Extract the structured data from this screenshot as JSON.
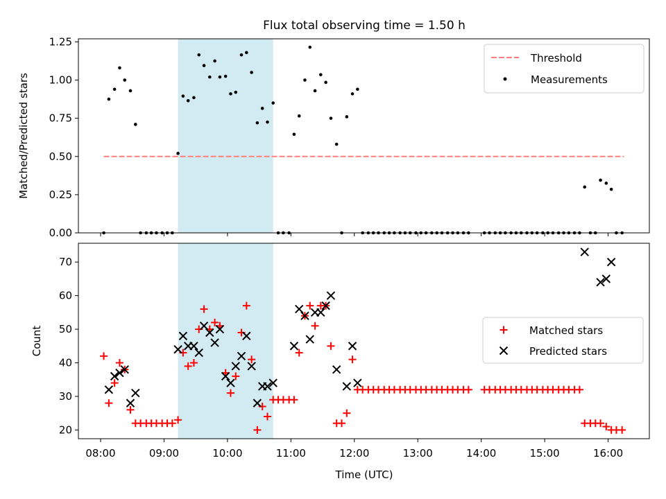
{
  "colors": {
    "threshold": "#ff7f7f",
    "measurement": "#000000",
    "matched": "#ff0000",
    "predicted": "#000000",
    "span": "#add8e6"
  },
  "chart_data": [
    {
      "type": "scatter",
      "panel": "top",
      "title": "Flux total observing time = 1.50 h",
      "xlabel": "",
      "ylabel": "Matched/Predicted stars",
      "xlim": [
        7.65,
        16.65
      ],
      "ylim": [
        0,
        1.27
      ],
      "yticks": [
        0.0,
        0.25,
        0.5,
        0.75,
        1.0,
        1.25
      ],
      "ytick_labels": [
        "0.00",
        "0.25",
        "0.50",
        "0.75",
        "1.00",
        "1.25"
      ],
      "shaded_span": [
        9.22,
        10.72
      ],
      "legend": {
        "position": "top-right",
        "entries": [
          "Threshold",
          "Measurements"
        ]
      },
      "series": [
        {
          "name": "Threshold",
          "style": "dashed-line",
          "points": [
            [
              8.05,
              0.5
            ],
            [
              16.25,
              0.5
            ]
          ]
        },
        {
          "name": "Measurements",
          "style": "dot",
          "points": [
            [
              8.05,
              0
            ],
            [
              8.13,
              0.875
            ],
            [
              8.22,
              0.94
            ],
            [
              8.3,
              1.08
            ],
            [
              8.38,
              1.0
            ],
            [
              8.47,
              0.93
            ],
            [
              8.55,
              0.71
            ],
            [
              8.63,
              0
            ],
            [
              8.72,
              0
            ],
            [
              8.8,
              0
            ],
            [
              8.88,
              0
            ],
            [
              8.97,
              0
            ],
            [
              9.05,
              0
            ],
            [
              9.13,
              0
            ],
            [
              9.22,
              0.52
            ],
            [
              9.3,
              0.895
            ],
            [
              9.38,
              0.865
            ],
            [
              9.47,
              0.885
            ],
            [
              9.55,
              1.165
            ],
            [
              9.63,
              1.095
            ],
            [
              9.72,
              1.02
            ],
            [
              9.8,
              1.125
            ],
            [
              9.88,
              1.02
            ],
            [
              9.97,
              1.025
            ],
            [
              10.05,
              0.91
            ],
            [
              10.13,
              0.92
            ],
            [
              10.22,
              1.165
            ],
            [
              10.3,
              1.18
            ],
            [
              10.38,
              1.05
            ],
            [
              10.47,
              0.72
            ],
            [
              10.55,
              0.815
            ],
            [
              10.63,
              0.725
            ],
            [
              10.72,
              0.85
            ],
            [
              10.8,
              0
            ],
            [
              10.88,
              0
            ],
            [
              10.97,
              0
            ],
            [
              11.05,
              0.645
            ],
            [
              11.13,
              0.765
            ],
            [
              11.22,
              1.0
            ],
            [
              11.3,
              1.215
            ],
            [
              11.38,
              0.93
            ],
            [
              11.47,
              1.035
            ],
            [
              11.55,
              0.985
            ],
            [
              11.63,
              0.75
            ],
            [
              11.72,
              0.58
            ],
            [
              11.8,
              0
            ],
            [
              11.88,
              0.76
            ],
            [
              11.97,
              0.91
            ],
            [
              12.05,
              0.94
            ],
            [
              12.13,
              0
            ],
            [
              12.22,
              0
            ],
            [
              12.3,
              0
            ],
            [
              12.38,
              0
            ],
            [
              12.47,
              0
            ],
            [
              12.55,
              0
            ],
            [
              12.63,
              0
            ],
            [
              12.72,
              0
            ],
            [
              12.8,
              0
            ],
            [
              12.88,
              0
            ],
            [
              12.97,
              0
            ],
            [
              13.05,
              0
            ],
            [
              13.13,
              0
            ],
            [
              13.22,
              0
            ],
            [
              13.3,
              0
            ],
            [
              13.38,
              0
            ],
            [
              13.47,
              0
            ],
            [
              13.55,
              0
            ],
            [
              13.63,
              0
            ],
            [
              13.72,
              0
            ],
            [
              13.8,
              0
            ],
            [
              14.05,
              0
            ],
            [
              14.13,
              0
            ],
            [
              14.22,
              0
            ],
            [
              14.3,
              0
            ],
            [
              14.38,
              0
            ],
            [
              14.47,
              0
            ],
            [
              14.55,
              0
            ],
            [
              14.63,
              0
            ],
            [
              14.72,
              0
            ],
            [
              14.8,
              0
            ],
            [
              14.88,
              0
            ],
            [
              14.97,
              0
            ],
            [
              15.05,
              0
            ],
            [
              15.13,
              0
            ],
            [
              15.22,
              0
            ],
            [
              15.3,
              0
            ],
            [
              15.38,
              0
            ],
            [
              15.47,
              0
            ],
            [
              15.55,
              0
            ],
            [
              15.63,
              0.3
            ],
            [
              15.72,
              0
            ],
            [
              15.8,
              0
            ],
            [
              15.88,
              0.345
            ],
            [
              15.97,
              0.325
            ],
            [
              16.05,
              0.285
            ],
            [
              16.13,
              0
            ],
            [
              16.22,
              0
            ]
          ]
        }
      ]
    },
    {
      "type": "scatter",
      "panel": "bottom",
      "title": "",
      "xlabel": "Time (UTC)",
      "ylabel": "Count",
      "xlim": [
        7.65,
        16.65
      ],
      "ylim": [
        17.4,
        75.6
      ],
      "xticks": [
        8,
        9,
        10,
        11,
        12,
        13,
        14,
        15,
        16
      ],
      "xtick_labels": [
        "08:00",
        "09:00",
        "10:00",
        "11:00",
        "12:00",
        "13:00",
        "14:00",
        "15:00",
        "16:00"
      ],
      "yticks": [
        20,
        30,
        40,
        50,
        60,
        70
      ],
      "ytick_labels": [
        "20",
        "30",
        "40",
        "50",
        "60",
        "70"
      ],
      "shaded_span": [
        9.22,
        10.72
      ],
      "legend": {
        "position": "center-right",
        "entries": [
          "Matched stars",
          "Predicted stars"
        ]
      },
      "series": [
        {
          "name": "Matched stars",
          "style": "plus",
          "points": [
            [
              8.05,
              42
            ],
            [
              8.13,
              28
            ],
            [
              8.22,
              34
            ],
            [
              8.3,
              40
            ],
            [
              8.38,
              38
            ],
            [
              8.47,
              26
            ],
            [
              8.55,
              22
            ],
            [
              8.63,
              22
            ],
            [
              8.72,
              22
            ],
            [
              8.8,
              22
            ],
            [
              8.88,
              22
            ],
            [
              8.97,
              22
            ],
            [
              9.05,
              22
            ],
            [
              9.13,
              22
            ],
            [
              9.22,
              23
            ],
            [
              9.3,
              43
            ],
            [
              9.38,
              39
            ],
            [
              9.47,
              40
            ],
            [
              9.55,
              50
            ],
            [
              9.63,
              56
            ],
            [
              9.72,
              50
            ],
            [
              9.8,
              52
            ],
            [
              9.88,
              51
            ],
            [
              9.97,
              37
            ],
            [
              10.05,
              31
            ],
            [
              10.13,
              36
            ],
            [
              10.22,
              49
            ],
            [
              10.3,
              57
            ],
            [
              10.38,
              41
            ],
            [
              10.47,
              20
            ],
            [
              10.55,
              27
            ],
            [
              10.63,
              24
            ],
            [
              10.72,
              29
            ],
            [
              10.8,
              29
            ],
            [
              10.88,
              29
            ],
            [
              10.97,
              29
            ],
            [
              11.05,
              29
            ],
            [
              11.13,
              43
            ],
            [
              11.22,
              54
            ],
            [
              11.3,
              57
            ],
            [
              11.38,
              51
            ],
            [
              11.47,
              57
            ],
            [
              11.55,
              57
            ],
            [
              11.63,
              45
            ],
            [
              11.72,
              22
            ],
            [
              11.8,
              22
            ],
            [
              11.88,
              25
            ],
            [
              11.97,
              41
            ],
            [
              12.05,
              32
            ],
            [
              12.13,
              32
            ],
            [
              12.22,
              32
            ],
            [
              12.3,
              32
            ],
            [
              12.38,
              32
            ],
            [
              12.47,
              32
            ],
            [
              12.55,
              32
            ],
            [
              12.63,
              32
            ],
            [
              12.72,
              32
            ],
            [
              12.8,
              32
            ],
            [
              12.88,
              32
            ],
            [
              12.97,
              32
            ],
            [
              13.05,
              32
            ],
            [
              13.13,
              32
            ],
            [
              13.22,
              32
            ],
            [
              13.3,
              32
            ],
            [
              13.38,
              32
            ],
            [
              13.47,
              32
            ],
            [
              13.55,
              32
            ],
            [
              13.63,
              32
            ],
            [
              13.72,
              32
            ],
            [
              13.8,
              32
            ],
            [
              14.05,
              32
            ],
            [
              14.13,
              32
            ],
            [
              14.22,
              32
            ],
            [
              14.3,
              32
            ],
            [
              14.38,
              32
            ],
            [
              14.47,
              32
            ],
            [
              14.55,
              32
            ],
            [
              14.63,
              32
            ],
            [
              14.72,
              32
            ],
            [
              14.8,
              32
            ],
            [
              14.88,
              32
            ],
            [
              14.97,
              32
            ],
            [
              15.05,
              32
            ],
            [
              15.13,
              32
            ],
            [
              15.22,
              32
            ],
            [
              15.3,
              32
            ],
            [
              15.38,
              32
            ],
            [
              15.47,
              32
            ],
            [
              15.55,
              32
            ],
            [
              15.63,
              22
            ],
            [
              15.72,
              22
            ],
            [
              15.8,
              22
            ],
            [
              15.88,
              22
            ],
            [
              15.97,
              21
            ],
            [
              16.05,
              20
            ],
            [
              16.13,
              20
            ],
            [
              16.22,
              20
            ]
          ]
        },
        {
          "name": "Predicted stars",
          "style": "x",
          "points": [
            [
              8.13,
              32
            ],
            [
              8.22,
              36
            ],
            [
              8.3,
              37
            ],
            [
              8.38,
              38
            ],
            [
              8.47,
              28
            ],
            [
              8.55,
              31
            ],
            [
              9.22,
              44
            ],
            [
              9.3,
              48
            ],
            [
              9.38,
              45
            ],
            [
              9.47,
              45
            ],
            [
              9.55,
              43
            ],
            [
              9.63,
              51
            ],
            [
              9.72,
              49
            ],
            [
              9.8,
              46
            ],
            [
              9.88,
              50
            ],
            [
              9.97,
              36
            ],
            [
              10.05,
              34
            ],
            [
              10.13,
              39
            ],
            [
              10.22,
              42
            ],
            [
              10.3,
              48
            ],
            [
              10.38,
              39
            ],
            [
              10.47,
              28
            ],
            [
              10.55,
              33
            ],
            [
              10.63,
              33
            ],
            [
              10.72,
              34
            ],
            [
              11.05,
              45
            ],
            [
              11.13,
              56
            ],
            [
              11.22,
              54
            ],
            [
              11.3,
              47
            ],
            [
              11.38,
              55
            ],
            [
              11.47,
              55
            ],
            [
              11.55,
              57
            ],
            [
              11.63,
              60
            ],
            [
              11.72,
              38
            ],
            [
              11.88,
              33
            ],
            [
              11.97,
              45
            ],
            [
              12.05,
              34
            ],
            [
              15.63,
              73
            ],
            [
              15.88,
              64
            ],
            [
              15.97,
              65
            ],
            [
              16.05,
              70
            ]
          ]
        }
      ]
    }
  ]
}
